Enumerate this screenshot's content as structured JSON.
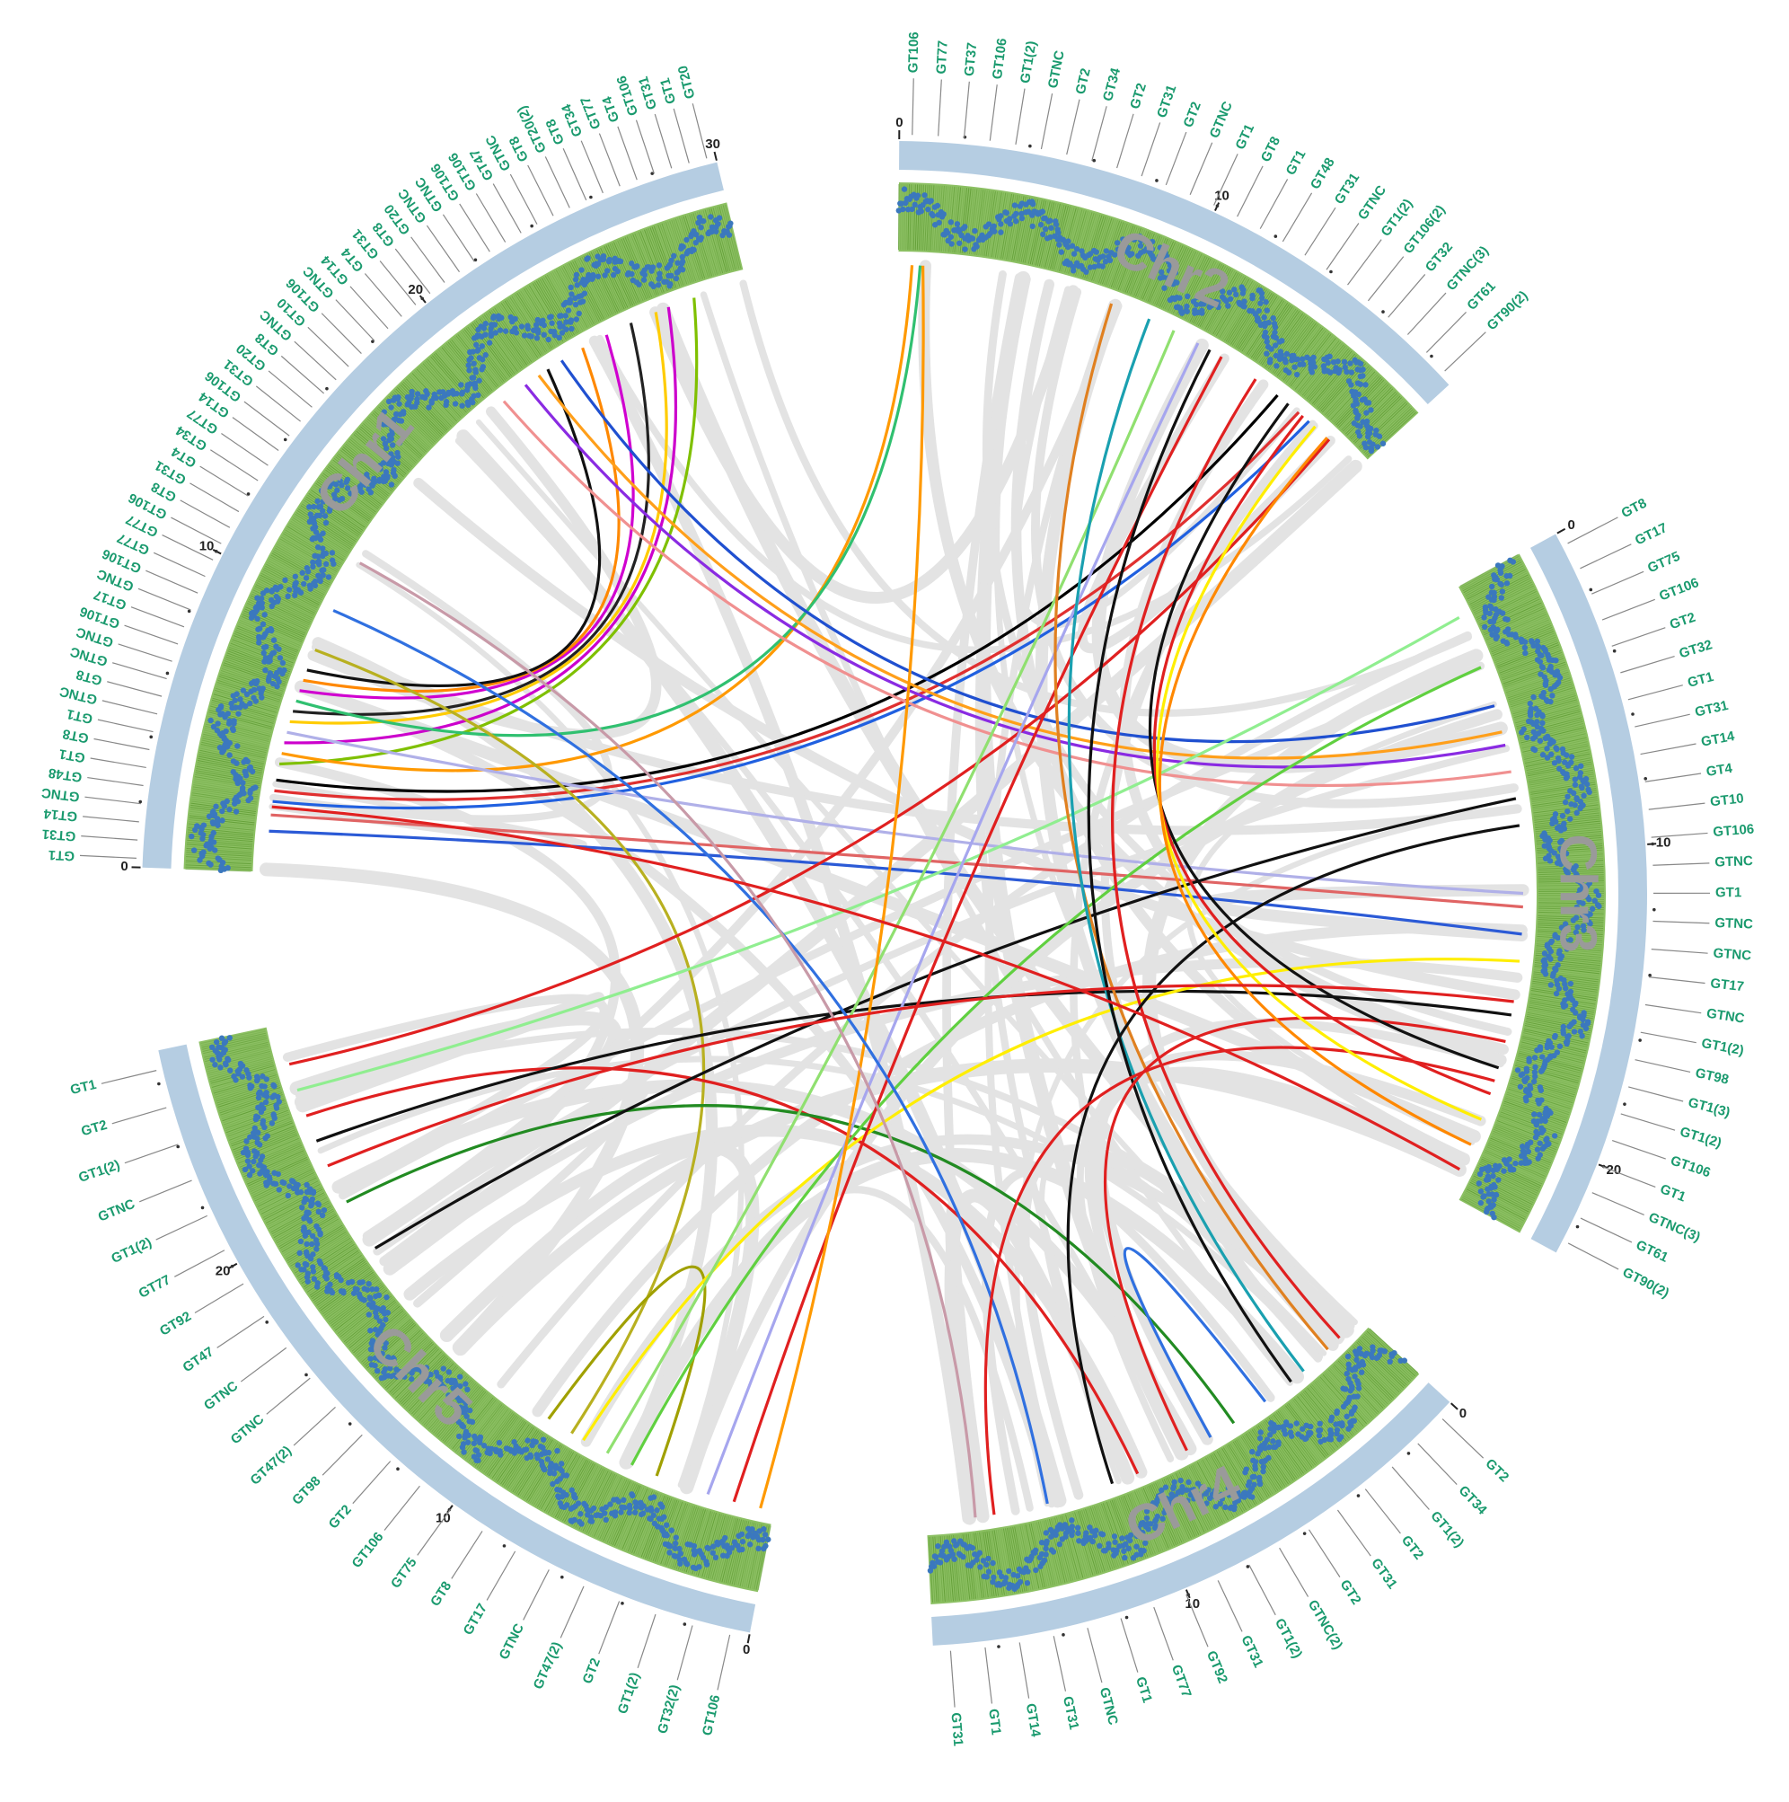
{
  "colors": {
    "chromosome_band": "#b5cde2",
    "density_track": "#8cc063",
    "density_track_dark": "#5e9b32",
    "density_points": "#3b78be",
    "gene_label": "#1a9a6e",
    "leader_line": "#888888",
    "synteny_background": "#e3e3e3"
  },
  "chromosomes": [
    {
      "name": "Chr1",
      "length": 30,
      "tick_labels": [
        "0",
        "10",
        "20",
        "30"
      ],
      "genes": [
        "GT1",
        "GT31",
        "GT14",
        "GTNC",
        "GT48",
        "GT1",
        "GT8",
        "GT1",
        "GTNC",
        "GT8",
        "GTNC",
        "GTNC",
        "GT106",
        "GT17",
        "GTNC",
        "GT106",
        "GT77",
        "GT77",
        "GT106",
        "GT8",
        "GT31",
        "GT4",
        "GT34",
        "GT77",
        "GT14",
        "GT106",
        "GT31",
        "GT20",
        "GT8",
        "GTNC",
        "GT10",
        "GT106",
        "GTNC",
        "GT14",
        "GT4",
        "GT31",
        "GT8",
        "GT20",
        "GTNC",
        "GTNC",
        "GT106",
        "GT106",
        "GT47",
        "GTNC",
        "GT8",
        "GT20(2)",
        "GT8",
        "GT34",
        "GT77",
        "GT4",
        "GT106",
        "GT31",
        "GT1",
        "GT20"
      ]
    },
    {
      "name": "Chr2",
      "length": 19,
      "tick_labels": [
        "0",
        "10"
      ],
      "genes": [
        "GT106",
        "GT77",
        "GT37",
        "GT106",
        "GT1(2)",
        "GTNC",
        "GT2",
        "GT34",
        "GT2",
        "GT31",
        "GT2",
        "GTNC",
        "GT1",
        "GT8",
        "GT1",
        "GT48",
        "GT31",
        "GTNC",
        "GT1(2)",
        "GT106(2)",
        "GT32",
        "GTNC(3)",
        "GT61",
        "GT90(2)"
      ]
    },
    {
      "name": "Chr3",
      "length": 23,
      "tick_labels": [
        "0",
        "10",
        "20"
      ],
      "genes": [
        "GT8",
        "GT17",
        "GT75",
        "GT106",
        "GT2",
        "GT32",
        "GT1",
        "GT31",
        "GT14",
        "GT4",
        "GT10",
        "GT106",
        "GTNC",
        "GT1",
        "GTNC",
        "GTNC",
        "GT17",
        "GTNC",
        "GT1(2)",
        "GT98",
        "GT1(3)",
        "GT1(2)",
        "GT106",
        "GT1",
        "GTNC(3)",
        "GT61",
        "GT90(2)"
      ]
    },
    {
      "name": "Chr4",
      "length": 18,
      "tick_labels": [
        "0",
        "10"
      ],
      "genes": [
        "GT2",
        "GT34",
        "GT1(2)",
        "GT2",
        "GT31",
        "GT2",
        "GTNC(2)",
        "GT1(2)",
        "GT31",
        "GT92",
        "GT77",
        "GT1",
        "GTNC",
        "GT31",
        "GT14",
        "GT1",
        "GT31"
      ]
    },
    {
      "name": "Chr5",
      "length": 27,
      "tick_labels": [
        "0",
        "10",
        "20"
      ],
      "genes": [
        "GT106",
        "GT32(2)",
        "GT1(2)",
        "GT2",
        "GT47(2)",
        "GTNC",
        "GT17",
        "GT8",
        "GT75",
        "GT106",
        "GT2",
        "GT98",
        "GT47(2)",
        "GTNC",
        "GTNC",
        "GT47",
        "GT92",
        "GT77",
        "GT1(2)",
        "GTNC",
        "GT1(2)",
        "GT2",
        "GT1"
      ]
    }
  ],
  "links": [
    {
      "from": "Chr1",
      "from_pos": 1.5,
      "to": "Chr3",
      "to_pos": 13.0,
      "color": "#2b5ad6"
    },
    {
      "from": "Chr1",
      "from_pos": 2.1,
      "to": "Chr3",
      "to_pos": 12.0,
      "color": "#e06464"
    },
    {
      "from": "Chr1",
      "from_pos": 2.6,
      "to": "Chr2",
      "to_pos": 16.5,
      "color": "#2060e0"
    },
    {
      "from": "Chr1",
      "from_pos": 3.0,
      "to": "Chr2",
      "to_pos": 16.0,
      "color": "#e03030"
    },
    {
      "from": "Chr1",
      "from_pos": 3.4,
      "to": "Chr2",
      "to_pos": 15.0,
      "color": "#000000"
    },
    {
      "from": "Chr1",
      "from_pos": 4.0,
      "to": "Chr1",
      "to_pos": 28.0,
      "color": "#7fc000"
    },
    {
      "from": "Chr1",
      "from_pos": 4.4,
      "to": "Chr2",
      "to_pos": 0.5,
      "color": "#ff9900"
    },
    {
      "from": "Chr1",
      "from_pos": 4.8,
      "to": "Chr1",
      "to_pos": 27.0,
      "color": "#cc00cc"
    },
    {
      "from": "Chr1",
      "from_pos": 5.2,
      "to": "Chr3",
      "to_pos": 11.5,
      "color": "#b0b0e8"
    },
    {
      "from": "Chr1",
      "from_pos": 5.6,
      "to": "Chr1",
      "to_pos": 26.5,
      "color": "#ffcc00"
    },
    {
      "from": "Chr1",
      "from_pos": 6.0,
      "to": "Chr1",
      "to_pos": 25.5,
      "color": "#222222"
    },
    {
      "from": "Chr1",
      "from_pos": 6.4,
      "to": "Chr2",
      "to_pos": 0.8,
      "color": "#30c070"
    },
    {
      "from": "Chr1",
      "from_pos": 6.8,
      "to": "Chr1",
      "to_pos": 24.5,
      "color": "#d000d0"
    },
    {
      "from": "Chr1",
      "from_pos": 7.2,
      "to": "Chr1",
      "to_pos": 23.5,
      "color": "#ff8800"
    },
    {
      "from": "Chr1",
      "from_pos": 7.6,
      "to": "Chr1",
      "to_pos": 22.0,
      "color": "#111111"
    },
    {
      "from": "Chr1",
      "from_pos": 8.4,
      "to": "Chr5",
      "to_pos": 8.0,
      "color": "#b8b020"
    },
    {
      "from": "Chr1",
      "from_pos": 20.0,
      "to": "Chr3",
      "to_pos": 7.0,
      "color": "#f09090"
    },
    {
      "from": "Chr1",
      "from_pos": 21.0,
      "to": "Chr3",
      "to_pos": 6.0,
      "color": "#8a2be2"
    },
    {
      "from": "Chr1",
      "from_pos": 21.6,
      "to": "Chr3",
      "to_pos": 5.5,
      "color": "#ff9f1a"
    },
    {
      "from": "Chr1",
      "from_pos": 22.6,
      "to": "Chr3",
      "to_pos": 4.5,
      "color": "#2050d0"
    },
    {
      "from": "Chr5",
      "from_pos": 25.5,
      "to": "Chr2",
      "to_pos": 17.5,
      "color": "#e02020"
    },
    {
      "from": "Chr5",
      "from_pos": 24.5,
      "to": "Chr3",
      "to_pos": 1.0,
      "color": "#90ee90"
    },
    {
      "from": "Chr5",
      "from_pos": 23.5,
      "to": "Chr4",
      "to_pos": 10.0,
      "color": "#e02020"
    },
    {
      "from": "Chr5",
      "from_pos": 22.5,
      "to": "Chr3",
      "to_pos": 16.0,
      "color": "#111111"
    },
    {
      "from": "Chr5",
      "from_pos": 20.0,
      "to": "Chr4",
      "to_pos": 6.0,
      "color": "#228b22"
    },
    {
      "from": "Chr5",
      "from_pos": 18.0,
      "to": "Chr3",
      "to_pos": 8.0,
      "color": "#111111"
    },
    {
      "from": "Chr5",
      "from_pos": 9.0,
      "to": "Chr5",
      "to_pos": 4.5,
      "color": "#a0a000"
    },
    {
      "from": "Chr5",
      "from_pos": 7.5,
      "to": "Chr3",
      "to_pos": 14.0,
      "color": "#ffee00"
    },
    {
      "from": "Chr5",
      "from_pos": 6.5,
      "to": "Chr2",
      "to_pos": 10.5,
      "color": "#90e070"
    },
    {
      "from": "Chr5",
      "from_pos": 5.5,
      "to": "Chr3",
      "to_pos": 3.0,
      "color": "#60d040"
    },
    {
      "from": "Chr5",
      "from_pos": 2.5,
      "to": "Chr2",
      "to_pos": 11.5,
      "color": "#a6a6ee"
    },
    {
      "from": "Chr5",
      "from_pos": 1.5,
      "to": "Chr2",
      "to_pos": 12.5,
      "color": "#e02020"
    },
    {
      "from": "Chr5",
      "from_pos": 0.5,
      "to": "Chr2",
      "to_pos": 0.9,
      "color": "#ff9900"
    },
    {
      "from": "Chr4",
      "from_pos": 1.0,
      "to": "Chr2",
      "to_pos": 14.0,
      "color": "#e02020"
    },
    {
      "from": "Chr4",
      "from_pos": 1.6,
      "to": "Chr2",
      "to_pos": 8.0,
      "color": "#e08020"
    },
    {
      "from": "Chr4",
      "from_pos": 2.8,
      "to": "Chr2",
      "to_pos": 9.5,
      "color": "#1aa0b0"
    },
    {
      "from": "Chr4",
      "from_pos": 3.4,
      "to": "Chr2",
      "to_pos": 12.0,
      "color": "#111111"
    },
    {
      "from": "Chr4",
      "from_pos": 4.6,
      "to": "Chr4",
      "to_pos": 7.0,
      "color": "#3070e0"
    },
    {
      "from": "Chr4",
      "from_pos": 8.0,
      "to": "Chr3",
      "to_pos": 17.0,
      "color": "#e02020"
    },
    {
      "from": "Chr4",
      "from_pos": 11.0,
      "to": "Chr3",
      "to_pos": 9.0,
      "color": "#111111"
    },
    {
      "from": "Chr4",
      "from_pos": 13.5,
      "to": "Chr1",
      "to_pos": 10.0,
      "color": "#3070e0"
    },
    {
      "from": "Chr4",
      "from_pos": 15.5,
      "to": "Chr3",
      "to_pos": 18.5,
      "color": "#e02020"
    },
    {
      "from": "Chr4",
      "from_pos": 16.2,
      "to": "Chr1",
      "to_pos": 12.0,
      "color": "#c89aa8"
    },
    {
      "from": "Chr2",
      "from_pos": 15.5,
      "to": "Chr3",
      "to_pos": 18.0,
      "color": "#111111"
    },
    {
      "from": "Chr2",
      "from_pos": 16.2,
      "to": "Chr3",
      "to_pos": 19.0,
      "color": "#e02020"
    },
    {
      "from": "Chr2",
      "from_pos": 16.8,
      "to": "Chr3",
      "to_pos": 20.0,
      "color": "#ffee00"
    },
    {
      "from": "Chr2",
      "from_pos": 17.4,
      "to": "Chr3",
      "to_pos": 21.0,
      "color": "#ff8800"
    },
    {
      "from": "Chr3",
      "from_pos": 22.0,
      "to": "Chr1",
      "to_pos": 2.4,
      "color": "#e02020"
    },
    {
      "from": "Chr3",
      "from_pos": 15.5,
      "to": "Chr5",
      "to_pos": 21.5,
      "color": "#e02020"
    }
  ]
}
